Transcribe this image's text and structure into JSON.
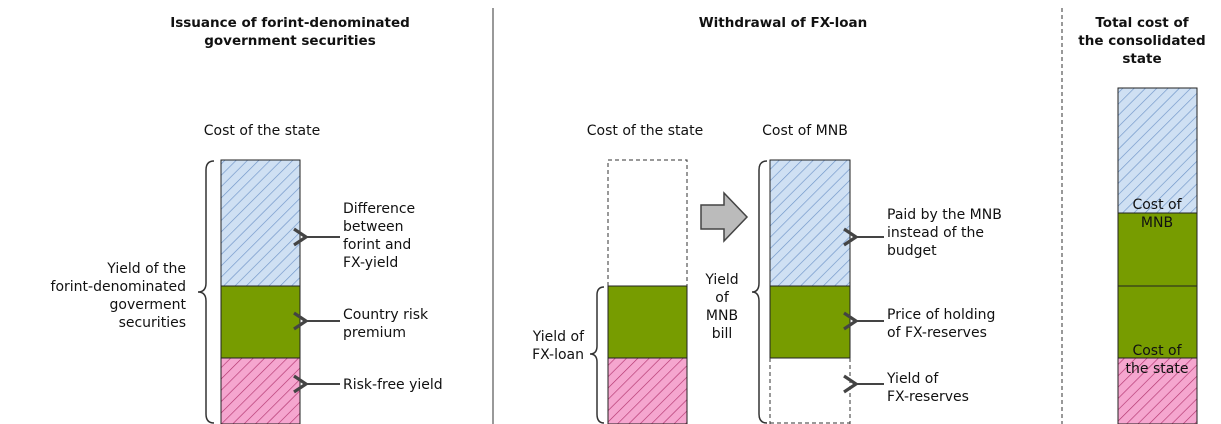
{
  "left": {
    "title": [
      "Issuance of forint-denominated",
      "government securities"
    ],
    "header": "Cost of the state",
    "brace_label": [
      "Yield of the",
      "forint-denominated",
      "goverment",
      "securities"
    ],
    "labels": [
      [
        "Difference",
        "between",
        "forint and",
        "FX-yield"
      ],
      [
        "Country risk",
        "premium"
      ],
      [
        "Risk-free yield"
      ]
    ]
  },
  "middle": {
    "title": "Withdrawal of FX-loan",
    "header_state": "Cost of the state",
    "header_mnb": "Cost of MNB",
    "brace_label": [
      "Yield of",
      "FX-loan"
    ],
    "arrow_label": [
      "Yield",
      "of",
      "MNB",
      "bill"
    ],
    "labels": [
      [
        "Paid by the MNB",
        "instead of the",
        "budget"
      ],
      [
        "Price of holding",
        "of FX-reserves"
      ],
      [
        "Yield of",
        "FX-reserves"
      ]
    ]
  },
  "right": {
    "title": [
      "Total cost of",
      "the consolidated",
      "state"
    ],
    "labels": [
      [
        "Cost of",
        "MNB"
      ],
      [
        "Cost of",
        "the state"
      ]
    ]
  }
}
